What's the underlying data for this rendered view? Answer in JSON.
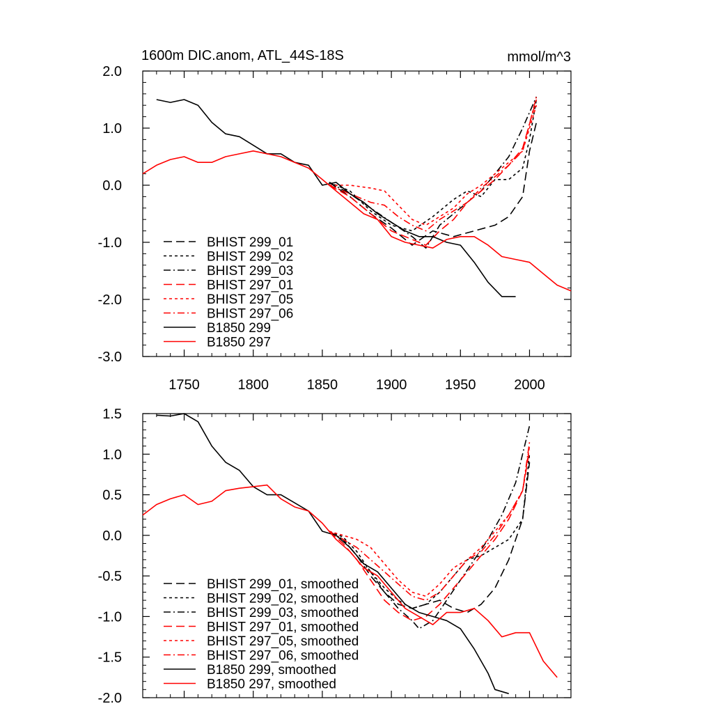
{
  "figure": {
    "title": "1600m DIC.anom, ATL_44S-18S",
    "units": "mmol/m^3"
  },
  "chart_data": [
    {
      "type": "line",
      "title": "1600m DIC.anom, ATL_44S-18S",
      "units": "mmol/m^3",
      "xlim": [
        1720,
        2030
      ],
      "ylim": [
        -3.0,
        2.0
      ],
      "x_ticks": [
        "1750",
        "1800",
        "1850",
        "1900",
        "1950",
        "2000"
      ],
      "y_ticks": [
        "2.0",
        "1.0",
        "0.0",
        "-1.0",
        "-2.0",
        "-3.0"
      ],
      "grid": false,
      "legend_position": "bottom-left",
      "series": [
        {
          "name": "BHIST 299_01",
          "color": "#000000",
          "dash": "long-dash",
          "x": [
            1855,
            1870,
            1885,
            1900,
            1915,
            1930,
            1945,
            1960,
            1975,
            1985,
            1995,
            2000,
            2005
          ],
          "y": [
            0.05,
            -0.2,
            -0.5,
            -0.75,
            -1.05,
            -0.8,
            -0.9,
            -0.8,
            -0.7,
            -0.55,
            -0.2,
            0.6,
            1.1
          ]
        },
        {
          "name": "BHIST 299_02",
          "color": "#000000",
          "dash": "short-dash",
          "x": [
            1855,
            1870,
            1885,
            1900,
            1915,
            1930,
            1945,
            1955,
            1965,
            1975,
            1985,
            1995,
            2000,
            2005
          ],
          "y": [
            0.05,
            -0.1,
            -0.45,
            -0.7,
            -0.8,
            -0.55,
            -0.25,
            -0.1,
            -0.2,
            0.1,
            0.1,
            0.3,
            0.8,
            1.5
          ]
        },
        {
          "name": "BHIST 299_03",
          "color": "#000000",
          "dash": "dash-dot",
          "x": [
            1855,
            1870,
            1885,
            1900,
            1915,
            1925,
            1935,
            1945,
            1955,
            1965,
            1975,
            1985,
            1995,
            2005
          ],
          "y": [
            0.05,
            -0.15,
            -0.4,
            -0.65,
            -0.9,
            -1.1,
            -0.7,
            -0.5,
            -0.3,
            -0.1,
            0.2,
            0.5,
            1.0,
            1.55
          ]
        },
        {
          "name": "BHIST 297_01",
          "color": "#ff0000",
          "dash": "long-dash",
          "x": [
            1855,
            1870,
            1885,
            1900,
            1915,
            1925,
            1935,
            1945,
            1955,
            1965,
            1975,
            1985,
            1995,
            2005
          ],
          "y": [
            0.0,
            -0.2,
            -0.5,
            -0.8,
            -0.95,
            -1.05,
            -0.8,
            -0.6,
            -0.3,
            -0.1,
            0.1,
            0.35,
            0.65,
            1.5
          ]
        },
        {
          "name": "BHIST 297_05",
          "color": "#ff0000",
          "dash": "short-dash",
          "x": [
            1855,
            1870,
            1885,
            1895,
            1905,
            1915,
            1925,
            1935,
            1945,
            1955,
            1965,
            1975,
            1985,
            1995,
            2005
          ],
          "y": [
            0.0,
            0.0,
            -0.05,
            -0.1,
            -0.35,
            -0.6,
            -0.7,
            -0.55,
            -0.4,
            -0.15,
            0.0,
            0.2,
            0.4,
            0.6,
            1.4
          ]
        },
        {
          "name": "BHIST 297_06",
          "color": "#ff0000",
          "dash": "dash-dot",
          "x": [
            1855,
            1870,
            1885,
            1895,
            1905,
            1915,
            1925,
            1935,
            1945,
            1955,
            1965,
            1975,
            1985,
            1995,
            2005
          ],
          "y": [
            0.0,
            -0.15,
            -0.3,
            -0.35,
            -0.55,
            -0.7,
            -0.8,
            -0.6,
            -0.45,
            -0.3,
            -0.05,
            0.15,
            0.35,
            0.6,
            1.55
          ]
        },
        {
          "name": "B1850 299",
          "color": "#000000",
          "dash": "solid",
          "x": [
            1730,
            1740,
            1750,
            1760,
            1770,
            1780,
            1790,
            1800,
            1810,
            1820,
            1830,
            1840,
            1850,
            1860,
            1870,
            1880,
            1890,
            1900,
            1910,
            1920,
            1930,
            1940,
            1950,
            1960,
            1970,
            1980,
            1990
          ],
          "y": [
            1.5,
            1.45,
            1.5,
            1.4,
            1.1,
            0.9,
            0.85,
            0.7,
            0.55,
            0.55,
            0.4,
            0.35,
            0.0,
            0.05,
            -0.15,
            -0.3,
            -0.5,
            -0.65,
            -0.8,
            -0.9,
            -0.9,
            -1.0,
            -1.05,
            -1.35,
            -1.7,
            -1.95,
            -1.95
          ]
        },
        {
          "name": "B1850 297",
          "color": "#ff0000",
          "dash": "solid",
          "x": [
            1720,
            1730,
            1740,
            1750,
            1760,
            1770,
            1780,
            1790,
            1800,
            1810,
            1820,
            1830,
            1840,
            1850,
            1860,
            1870,
            1880,
            1890,
            1900,
            1910,
            1920,
            1930,
            1940,
            1950,
            1960,
            1970,
            1980,
            1990,
            2000,
            2010,
            2020,
            2030
          ],
          "y": [
            0.2,
            0.35,
            0.45,
            0.5,
            0.4,
            0.4,
            0.5,
            0.55,
            0.6,
            0.55,
            0.5,
            0.4,
            0.3,
            0.1,
            -0.1,
            -0.3,
            -0.5,
            -0.6,
            -0.9,
            -1.0,
            -1.05,
            -1.1,
            -0.95,
            -0.9,
            -0.9,
            -1.05,
            -1.25,
            -1.3,
            -1.35,
            -1.55,
            -1.75,
            -1.85
          ]
        }
      ]
    },
    {
      "type": "line",
      "xlim": [
        1720,
        2030
      ],
      "ylim": [
        -2.0,
        1.5
      ],
      "x_ticks": [
        "1750",
        "1800",
        "1850",
        "1900",
        "1950",
        "2000"
      ],
      "x_tick_labels_shown": false,
      "y_ticks": [
        "1.5",
        "1.0",
        "0.5",
        "0.0",
        "-0.5",
        "-1.0",
        "-1.5",
        "-2.0"
      ],
      "grid": false,
      "legend_position": "bottom-left",
      "series": [
        {
          "name": "BHIST 299_01, smoothed",
          "color": "#000000",
          "dash": "long-dash",
          "x": [
            1855,
            1865,
            1875,
            1885,
            1895,
            1905,
            1915,
            1925,
            1935,
            1945,
            1955,
            1965,
            1975,
            1985,
            1995,
            2000
          ],
          "y": [
            0.05,
            -0.05,
            -0.25,
            -0.5,
            -0.7,
            -0.85,
            -0.9,
            -0.85,
            -0.8,
            -0.9,
            -0.95,
            -0.85,
            -0.65,
            -0.3,
            0.2,
            0.9
          ]
        },
        {
          "name": "BHIST 299_02, smoothed",
          "color": "#000000",
          "dash": "short-dash",
          "x": [
            1855,
            1865,
            1875,
            1885,
            1895,
            1905,
            1915,
            1925,
            1935,
            1945,
            1955,
            1965,
            1975,
            1985,
            1995,
            2000
          ],
          "y": [
            0.05,
            -0.02,
            -0.2,
            -0.45,
            -0.65,
            -0.8,
            -0.9,
            -0.85,
            -0.7,
            -0.5,
            -0.3,
            -0.25,
            -0.15,
            -0.05,
            0.2,
            1.0
          ]
        },
        {
          "name": "BHIST 299_03, smoothed",
          "color": "#000000",
          "dash": "dash-dot",
          "x": [
            1855,
            1865,
            1875,
            1885,
            1895,
            1905,
            1915,
            1920,
            1930,
            1940,
            1950,
            1960,
            1970,
            1980,
            1990,
            2000
          ],
          "y": [
            0.05,
            -0.05,
            -0.25,
            -0.45,
            -0.7,
            -0.9,
            -1.05,
            -1.15,
            -1.05,
            -0.8,
            -0.55,
            -0.3,
            -0.05,
            0.25,
            0.65,
            1.35
          ]
        },
        {
          "name": "BHIST 297_01, smoothed",
          "color": "#ff0000",
          "dash": "long-dash",
          "x": [
            1855,
            1865,
            1875,
            1885,
            1895,
            1905,
            1915,
            1925,
            1935,
            1945,
            1955,
            1965,
            1975,
            1985,
            1995,
            2000
          ],
          "y": [
            0.05,
            -0.1,
            -0.3,
            -0.55,
            -0.8,
            -0.95,
            -1.05,
            -1.0,
            -0.85,
            -0.65,
            -0.45,
            -0.25,
            -0.05,
            0.2,
            0.55,
            1.05
          ]
        },
        {
          "name": "BHIST 297_05, smoothed",
          "color": "#ff0000",
          "dash": "short-dash",
          "x": [
            1855,
            1865,
            1875,
            1885,
            1895,
            1905,
            1915,
            1925,
            1935,
            1945,
            1955,
            1965,
            1975,
            1985,
            1995,
            2000
          ],
          "y": [
            0.05,
            0.0,
            -0.05,
            -0.15,
            -0.35,
            -0.55,
            -0.7,
            -0.75,
            -0.6,
            -0.4,
            -0.3,
            -0.15,
            0.05,
            0.25,
            0.55,
            1.1
          ]
        },
        {
          "name": "BHIST 297_06, smoothed",
          "color": "#ff0000",
          "dash": "dash-dot",
          "x": [
            1855,
            1865,
            1875,
            1885,
            1895,
            1905,
            1915,
            1925,
            1935,
            1945,
            1955,
            1965,
            1975,
            1985,
            1995,
            2000
          ],
          "y": [
            0.05,
            -0.05,
            -0.15,
            -0.3,
            -0.45,
            -0.6,
            -0.75,
            -0.8,
            -0.7,
            -0.5,
            -0.3,
            -0.2,
            0.0,
            0.25,
            0.55,
            1.15
          ]
        },
        {
          "name": "B1850 299, smoothed",
          "color": "#000000",
          "dash": "solid",
          "x": [
            1730,
            1740,
            1750,
            1760,
            1770,
            1780,
            1790,
            1800,
            1810,
            1820,
            1830,
            1840,
            1850,
            1860,
            1870,
            1880,
            1890,
            1900,
            1910,
            1920,
            1930,
            1940,
            1950,
            1960,
            1970,
            1975,
            1985
          ],
          "y": [
            1.48,
            1.47,
            1.5,
            1.4,
            1.1,
            0.9,
            0.8,
            0.6,
            0.5,
            0.5,
            0.4,
            0.3,
            0.05,
            0.0,
            -0.15,
            -0.35,
            -0.45,
            -0.65,
            -0.85,
            -0.95,
            -1.0,
            -1.05,
            -1.15,
            -1.4,
            -1.7,
            -1.9,
            -1.95
          ]
        },
        {
          "name": "B1850 297, smoothed",
          "color": "#ff0000",
          "dash": "solid",
          "x": [
            1720,
            1730,
            1740,
            1750,
            1760,
            1770,
            1780,
            1790,
            1800,
            1810,
            1820,
            1830,
            1840,
            1850,
            1860,
            1870,
            1880,
            1890,
            1900,
            1910,
            1920,
            1930,
            1940,
            1950,
            1960,
            1970,
            1980,
            1990,
            2000,
            2010,
            2020
          ],
          "y": [
            0.25,
            0.38,
            0.45,
            0.5,
            0.38,
            0.42,
            0.55,
            0.58,
            0.6,
            0.62,
            0.45,
            0.35,
            0.3,
            0.15,
            -0.05,
            -0.2,
            -0.4,
            -0.5,
            -0.7,
            -0.9,
            -1.0,
            -1.1,
            -0.95,
            -0.95,
            -0.9,
            -1.05,
            -1.25,
            -1.2,
            -1.2,
            -1.55,
            -1.75
          ]
        }
      ]
    }
  ]
}
